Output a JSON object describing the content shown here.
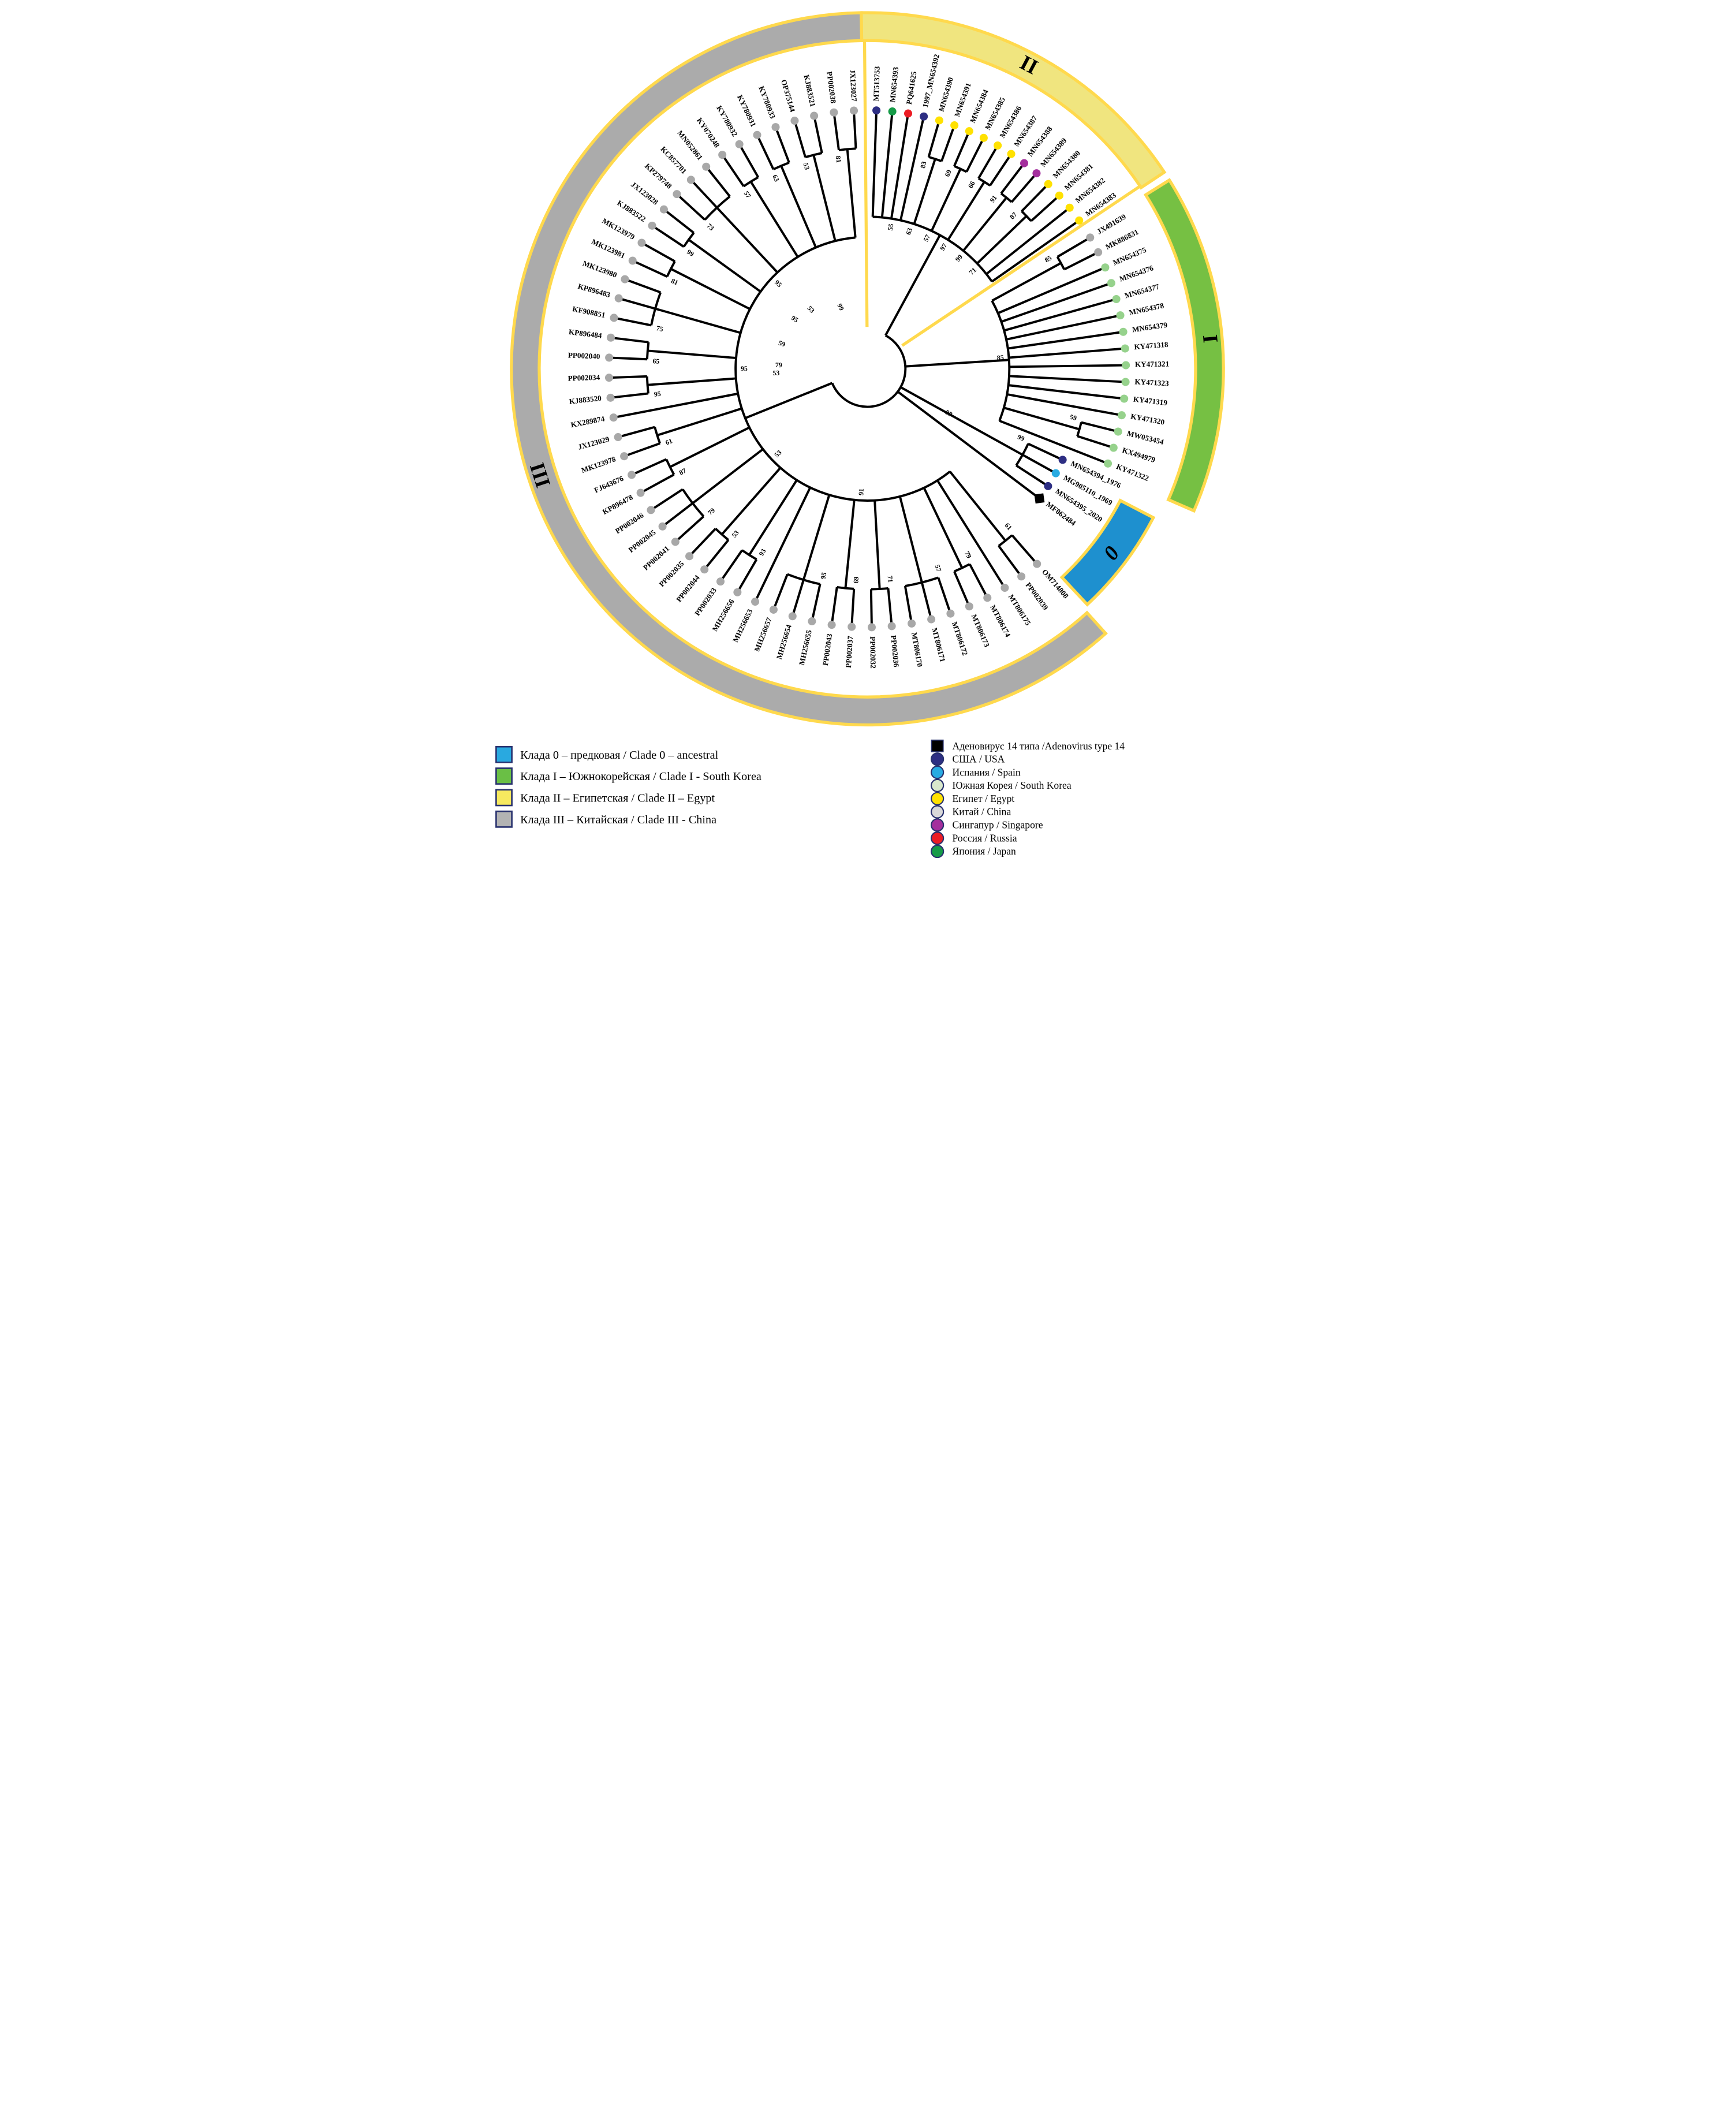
{
  "figure": {
    "type": "circular_phylogenetic_tree",
    "country_colors": {
      "usa": "#2d2e83",
      "spain": "#29abe2",
      "south_korea": "#96d28c",
      "egypt": "#ffe100",
      "china": "#a8a8a8",
      "singapore": "#a42f9d",
      "russia": "#ec1c24",
      "japan": "#169b48",
      "adenovirus14": "#000000"
    },
    "clades": [
      {
        "id": "II",
        "arc_label": "II",
        "band_color": "#f0e57f",
        "band_outline": "#ffd94d",
        "bootstraps": [
          83,
          69,
          66,
          91,
          87,
          55,
          63,
          57,
          97,
          99,
          71
        ],
        "taxa": [
          [
            "MT513753",
            "usa"
          ],
          [
            "MN654393",
            "japan"
          ],
          [
            "PQ641625",
            "russia"
          ],
          [
            "1997_MN654392",
            "usa"
          ],
          [
            "MN654390",
            "egypt"
          ],
          [
            "MN654391",
            "egypt"
          ],
          [
            "MN654384",
            "egypt"
          ],
          [
            "MN654385",
            "egypt"
          ],
          [
            "MN654386",
            "egypt"
          ],
          [
            "MN654387",
            "egypt"
          ],
          [
            "MN654388",
            "singapore"
          ],
          [
            "MN654389",
            "singapore"
          ],
          [
            "MN654380",
            "egypt"
          ],
          [
            "MN654381",
            "egypt"
          ],
          [
            "MN654382",
            "egypt"
          ],
          [
            "MN654383",
            "egypt"
          ]
        ]
      },
      {
        "id": "I",
        "arc_label": "I",
        "band_color": "#76c043",
        "band_outline": "#ffd94d",
        "bootstraps": [
          85,
          59,
          85
        ],
        "taxa": [
          [
            "JX491639",
            "china"
          ],
          [
            "MK886831",
            "china"
          ],
          [
            "MN654375",
            "south_korea"
          ],
          [
            "MN654376",
            "south_korea"
          ],
          [
            "MN654377",
            "south_korea"
          ],
          [
            "MN654378",
            "south_korea"
          ],
          [
            "MN654379",
            "south_korea"
          ],
          [
            "KY471318",
            "south_korea"
          ],
          [
            "KY471321",
            "south_korea"
          ],
          [
            "KY471323",
            "south_korea"
          ],
          [
            "KY471319",
            "south_korea"
          ],
          [
            "KY471320",
            "south_korea"
          ],
          [
            "MW053454",
            "south_korea"
          ],
          [
            "KX494979",
            "south_korea"
          ],
          [
            "KY471322",
            "south_korea"
          ]
        ]
      },
      {
        "id": "ancestral-strains",
        "arc_label": null,
        "bootstraps": [
          99,
          99
        ],
        "taxa": [
          [
            "MN654394_1976",
            "usa"
          ],
          [
            "MG905110_1969",
            "spain"
          ],
          [
            "MN654395_2020",
            "usa"
          ]
        ]
      },
      {
        "id": "0",
        "arc_label": "0",
        "band_color": "#1e90cf",
        "band_outline": "#ffd94d",
        "bootstraps": [],
        "taxa": [
          [
            "MF062484",
            "adenovirus14"
          ]
        ]
      },
      {
        "id": "III",
        "arc_label": "III",
        "band_color": "#ababab",
        "band_outline": "#ffd94d",
        "bootstraps": [
          61,
          79,
          57,
          71,
          69,
          95,
          93,
          53,
          79,
          87,
          61,
          95,
          65,
          75,
          81,
          99,
          73,
          57,
          63,
          53,
          81,
          91,
          53,
          95,
          95
        ],
        "taxa": [
          [
            "OM714808",
            "china"
          ],
          [
            "PP002039",
            "china"
          ],
          [
            "MT806175",
            "china"
          ],
          [
            "MT806174",
            "china"
          ],
          [
            "MT806173",
            "china"
          ],
          [
            "MT806172",
            "china"
          ],
          [
            "MT806171",
            "china"
          ],
          [
            "MT806170",
            "china"
          ],
          [
            "PP002036",
            "china"
          ],
          [
            "PP002032",
            "china"
          ],
          [
            "PP002037",
            "china"
          ],
          [
            "PP002043",
            "china"
          ],
          [
            "MH256655",
            "china"
          ],
          [
            "MH256654",
            "china"
          ],
          [
            "MH256657",
            "china"
          ],
          [
            "MH256653",
            "china"
          ],
          [
            "MH256656",
            "china"
          ],
          [
            "PP002033",
            "china"
          ],
          [
            "PP002044",
            "china"
          ],
          [
            "PP002035",
            "china"
          ],
          [
            "PP002041",
            "china"
          ],
          [
            "PP002045",
            "china"
          ],
          [
            "PP002046",
            "china"
          ],
          [
            "KP896478",
            "china"
          ],
          [
            "FJ643676",
            "china"
          ],
          [
            "MK123978",
            "china"
          ],
          [
            "JX123029",
            "china"
          ],
          [
            "KX289874",
            "china"
          ],
          [
            "KJ883520",
            "china"
          ],
          [
            "PP002034",
            "china"
          ],
          [
            "PP002040",
            "china"
          ],
          [
            "KP896484",
            "china"
          ],
          [
            "KF908851",
            "china"
          ],
          [
            "KP896483",
            "china"
          ],
          [
            "MK123980",
            "china"
          ],
          [
            "MK123981",
            "china"
          ],
          [
            "MK123979",
            "china"
          ],
          [
            "KJ883522",
            "china"
          ],
          [
            "JX123028",
            "china"
          ],
          [
            "KP279748",
            "china"
          ],
          [
            "KC857701",
            "china"
          ],
          [
            "MN052861",
            "china"
          ],
          [
            "KY070248",
            "china"
          ],
          [
            "KY780932",
            "china"
          ],
          [
            "KY780931",
            "china"
          ],
          [
            "KY780933",
            "china"
          ],
          [
            "OP375144",
            "china"
          ],
          [
            "KJ883521",
            "china"
          ],
          [
            "PP002038",
            "china"
          ],
          [
            "JX123027",
            "china"
          ]
        ]
      }
    ],
    "root_bootstraps": [
      95,
      53,
      99,
      59,
      79,
      53
    ]
  },
  "legend_left": {
    "items": [
      {
        "color": "#29a9e0",
        "label": "Клада 0 – предковая / Clade 0 – ancestral"
      },
      {
        "color": "#6abf45",
        "label": "Клада I – Южнокорейская / Clade I - South Korea"
      },
      {
        "color": "#f6e95f",
        "label": "Клада II – Египетская / Clade II – Egypt"
      },
      {
        "color": "#b3b3b3",
        "label": "Клада III – Китайская / Clade III - China"
      }
    ]
  },
  "legend_right": {
    "items": [
      {
        "marker": "square",
        "color": "#000000",
        "label": "Аденовирус 14 типа /Adenovirus type 14"
      },
      {
        "marker": "circle",
        "color": "#2d2e83",
        "label": "США / USA"
      },
      {
        "marker": "circle",
        "color": "#29abe2",
        "label": "Испания / Spain"
      },
      {
        "marker": "circle",
        "color": "#d9e8cc",
        "label": "Южная Корея / South Korea"
      },
      {
        "marker": "circle",
        "color": "#ffe100",
        "label": "Египет / Egypt"
      },
      {
        "marker": "circle",
        "color": "#d9d9d9",
        "label": "Китай / China"
      },
      {
        "marker": "circle",
        "color": "#a42f9d",
        "label": "Сингапур / Singapore"
      },
      {
        "marker": "circle",
        "color": "#ec1c24",
        "label": "Россия / Russia"
      },
      {
        "marker": "circle",
        "color": "#169b48",
        "label": "Япония / Japan"
      }
    ]
  }
}
